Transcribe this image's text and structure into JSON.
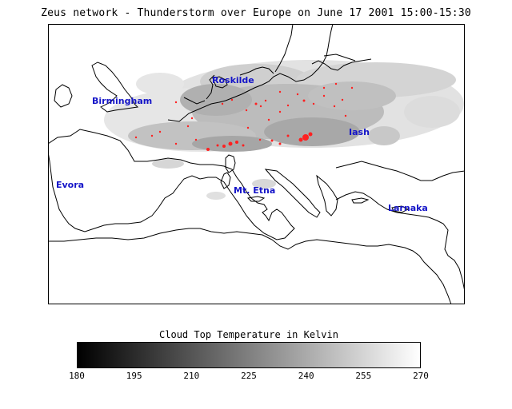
{
  "title": "Zeus network - Thunderstorm over Europe on June 17 2001  15:00-15:30",
  "colorbar": {
    "title": "Cloud Top Temperature in Kelvin",
    "ticks": [
      "180",
      "195",
      "210",
      "225",
      "240",
      "255",
      "270"
    ],
    "min": 180,
    "max": 270
  },
  "stations": [
    {
      "name": "Roskilde"
    },
    {
      "name": "Birmingham"
    },
    {
      "name": "Iash"
    },
    {
      "name": "Evora"
    },
    {
      "name": "Mt. Etna"
    },
    {
      "name": "Larnaka"
    }
  ],
  "colors": {
    "lightning": "#ff2020",
    "station_label": "#1414c8",
    "coastline": "#000000"
  }
}
